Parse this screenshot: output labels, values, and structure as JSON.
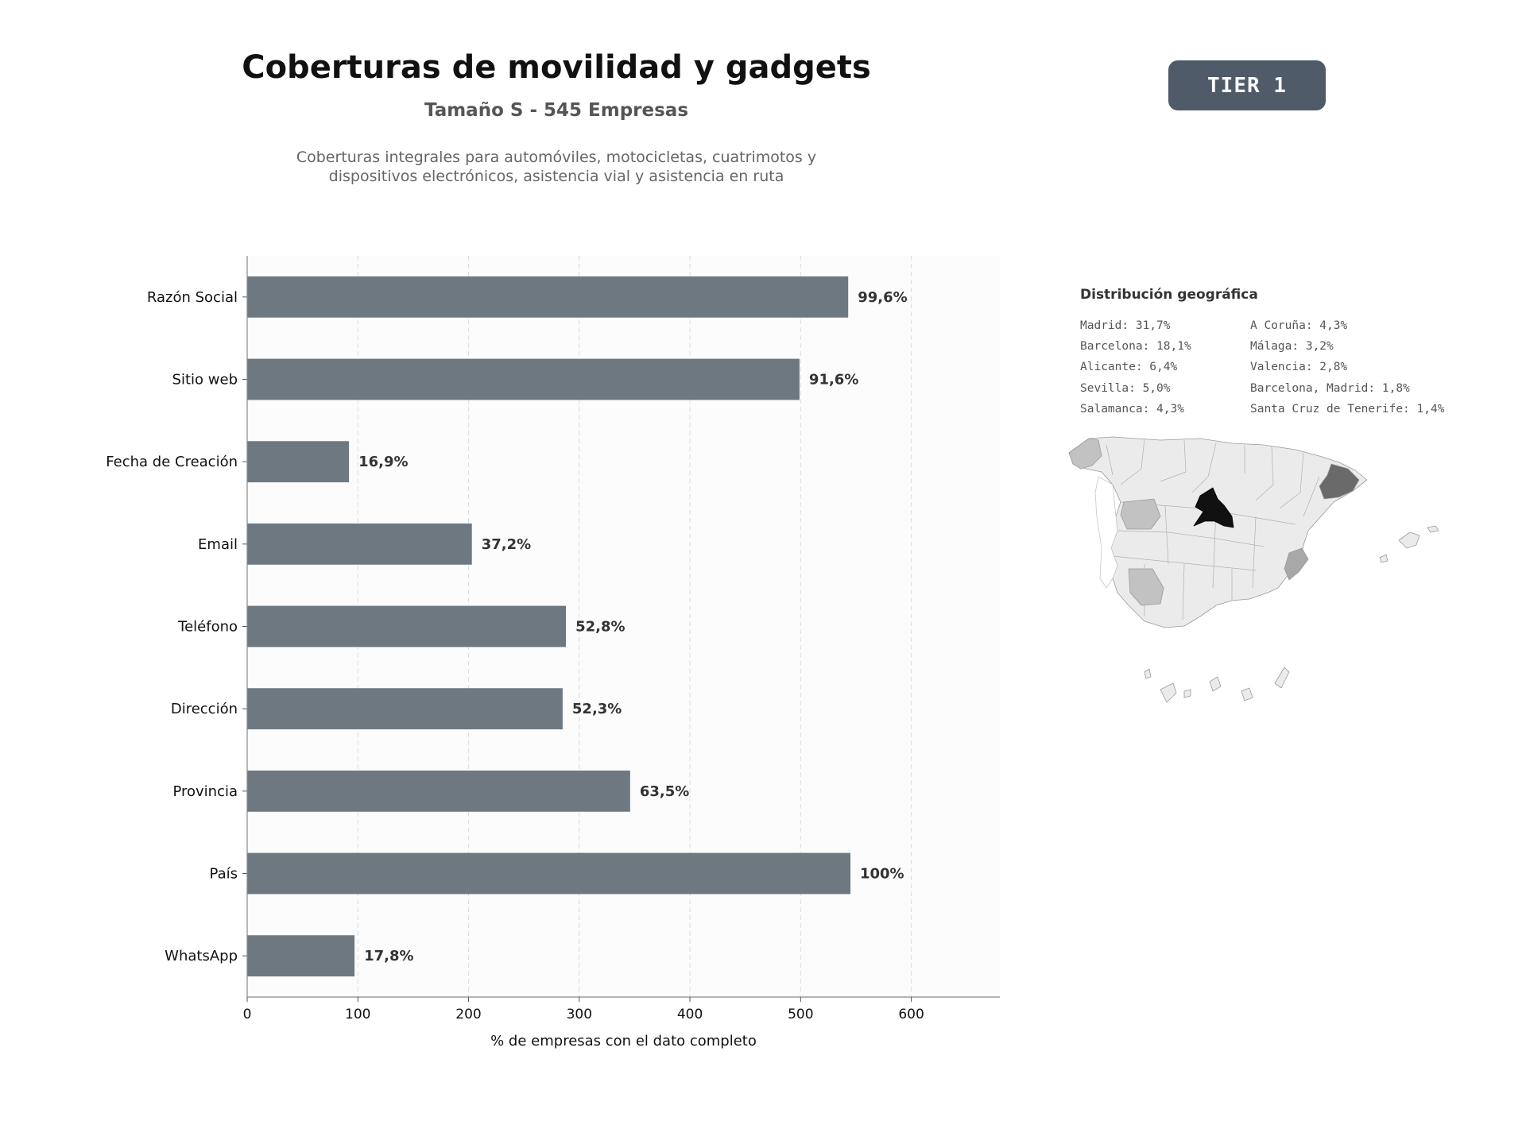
{
  "header": {
    "title": "Coberturas de movilidad y gadgets",
    "subtitle": "Tamaño S - 545 Empresas",
    "description_line1": "Coberturas integrales para automóviles, motocicletas, cuatrimotos y",
    "description_line2": "dispositivos electrónicos, asistencia vial y asistencia en ruta",
    "badge": "TIER 1"
  },
  "chart_data": {
    "type": "bar",
    "orientation": "horizontal",
    "categories": [
      "Razón Social",
      "Sitio web",
      "Fecha de Creación",
      "Email",
      "Teléfono",
      "Dirección",
      "Provincia",
      "País",
      "WhatsApp"
    ],
    "values": [
      543,
      499,
      92,
      203,
      288,
      285,
      346,
      545,
      97
    ],
    "data_labels": [
      "99,6%",
      "91,6%",
      "16,9%",
      "37,2%",
      "52,8%",
      "52,3%",
      "63,5%",
      "100%",
      "17,8%"
    ],
    "xlabel": "% de empresas con el dato completo",
    "ylabel": "",
    "xlim": [
      0,
      680
    ],
    "xticks": [
      0,
      100,
      200,
      300,
      400,
      500,
      600
    ],
    "grid": "x-dashed",
    "bar_color": "#6e7880"
  },
  "geo": {
    "title": "Distribución geográfica",
    "col1": [
      "Madrid: 31,7%",
      "Barcelona: 18,1%",
      "Alicante: 6,4%",
      "Sevilla: 5,0%",
      "Salamanca: 4,3%"
    ],
    "col2": [
      "A Coruña: 4,3%",
      "Málaga: 3,2%",
      "Valencia: 2,8%",
      "Barcelona, Madrid: 1,8%",
      "Santa Cruz de Tenerife: 1,4%"
    ],
    "colors": {
      "madrid": "#111111",
      "barcelona": "#6a6a6a",
      "alicante": "#a8a8a8",
      "sevilla": "#c2c2c2",
      "salamanca": "#c2c2c2",
      "a_coruna": "#c2c2c2",
      "other": "#ebebeb"
    }
  }
}
